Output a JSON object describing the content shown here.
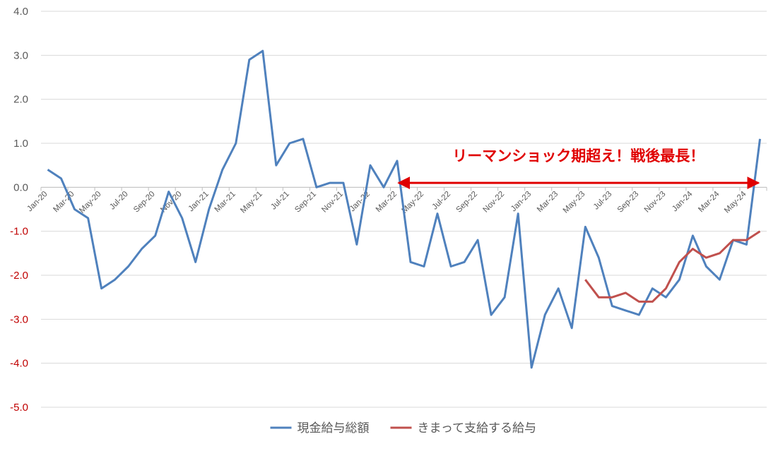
{
  "chart_data": {
    "type": "line",
    "ylim": [
      -5.0,
      4.0
    ],
    "y_ticks": [
      "4.0",
      "3.0",
      "2.0",
      "1.0",
      "0.0",
      "-1.0",
      "-2.0",
      "-3.0",
      "-4.0",
      "-5.0"
    ],
    "negative_tick_color": "#c00000",
    "x": [
      "Jan-20",
      "Feb-20",
      "Mar-20",
      "Apr-20",
      "May-20",
      "Jun-20",
      "Jul-20",
      "Aug-20",
      "Sep-20",
      "Oct-20",
      "Nov-20",
      "Dec-20",
      "Jan-21",
      "Feb-21",
      "Mar-21",
      "Apr-21",
      "May-21",
      "Jun-21",
      "Jul-21",
      "Aug-21",
      "Sep-21",
      "Oct-21",
      "Nov-21",
      "Dec-21",
      "Jan-22",
      "Feb-22",
      "Mar-22",
      "Apr-22",
      "May-22",
      "Jun-22",
      "Jul-22",
      "Aug-22",
      "Sep-22",
      "Oct-22",
      "Nov-22",
      "Dec-22",
      "Jan-23",
      "Feb-23",
      "Mar-23",
      "Apr-23",
      "May-23",
      "Jun-23",
      "Jul-23",
      "Aug-23",
      "Sep-23",
      "Oct-23",
      "Nov-23",
      "Dec-23",
      "Jan-24",
      "Feb-24",
      "Mar-24",
      "Apr-24",
      "May-24",
      "Jun-24"
    ],
    "x_tick_labels": [
      "Jan-20",
      "Mar-20",
      "May-20",
      "Jul-20",
      "Sep-20",
      "Nov-20",
      "Jan-21",
      "Mar-21",
      "May-21",
      "Jul-21",
      "Sep-21",
      "Nov-21",
      "Jan-22",
      "Mar-22",
      "May-22",
      "Jul-22",
      "Sep-22",
      "Nov-22",
      "Jan-23",
      "Mar-23",
      "May-23",
      "Jul-23",
      "Sep-23",
      "Nov-23",
      "Jan-24",
      "Mar-24",
      "May-24"
    ],
    "series": [
      {
        "name": "現金給与総額",
        "color": "#4f81bd",
        "values": [
          0.4,
          0.2,
          -0.5,
          -0.7,
          -2.3,
          -2.1,
          -1.8,
          -1.4,
          -1.1,
          -0.1,
          -0.7,
          -1.7,
          -0.5,
          0.4,
          1.0,
          2.9,
          3.1,
          0.5,
          1.0,
          1.1,
          0.0,
          0.1,
          0.1,
          -1.3,
          0.5,
          0.0,
          0.6,
          -1.7,
          -1.8,
          -0.6,
          -1.8,
          -1.7,
          -1.2,
          -2.9,
          -2.5,
          -0.6,
          -4.1,
          -2.9,
          -2.3,
          -3.2,
          -0.9,
          -1.6,
          -2.7,
          -2.8,
          -2.9,
          -2.3,
          -2.5,
          -2.1,
          -1.1,
          -1.8,
          -2.1,
          -1.2,
          -1.3,
          1.1
        ]
      },
      {
        "name": "きまって支給する給与",
        "color": "#c0504d",
        "values": [
          null,
          null,
          null,
          null,
          null,
          null,
          null,
          null,
          null,
          null,
          null,
          null,
          null,
          null,
          null,
          null,
          null,
          null,
          null,
          null,
          null,
          null,
          null,
          null,
          null,
          null,
          null,
          null,
          null,
          null,
          null,
          null,
          null,
          null,
          null,
          null,
          null,
          null,
          null,
          null,
          -2.1,
          -2.5,
          -2.5,
          -2.4,
          -2.6,
          -2.6,
          -2.3,
          -1.7,
          -1.4,
          -1.6,
          -1.5,
          -1.2,
          -1.2,
          -1.0
        ]
      }
    ],
    "annotation": {
      "text": "リーマンショック期超え！戦後最長！",
      "color": "#e00000",
      "arrow_from": "Mar-22",
      "arrow_to": "Jun-24",
      "arrow_y": 0.1,
      "text_y": 0.6
    },
    "legend": {
      "placement": "bottom-center"
    },
    "grid": true
  }
}
